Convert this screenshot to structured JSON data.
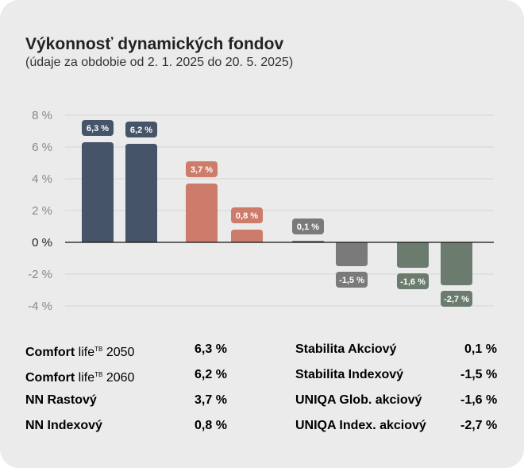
{
  "title": "Výkonnosť dynamických fondov",
  "subtitle": "(údaje za obdobie od 2. 1. 2025 do 20. 5. 2025)",
  "chart_data": {
    "type": "bar",
    "ylim": [
      -4,
      8
    ],
    "yticks": [
      8,
      6,
      4,
      2,
      0,
      -2,
      -4
    ],
    "ytick_labels": [
      "8 %",
      "6 %",
      "4 %",
      "2 %",
      "0 %",
      "-2 %",
      "-4 %"
    ],
    "grid": true,
    "categories": [
      "Comfort life TB 2050",
      "Comfort life TB 2060",
      "NN Rastový",
      "NN Indexový",
      "Stabilita Akciový",
      "Stabilita Indexový",
      "UNIQA Glob. akciový",
      "UNIQA Index. akciový"
    ],
    "values": [
      6.3,
      6.2,
      3.7,
      0.8,
      0.1,
      -1.5,
      -1.6,
      -2.7
    ],
    "data_labels": [
      "6,3 %",
      "6,2 %",
      "3,7 %",
      "0,8 %",
      "0,1 %",
      "-1,5 %",
      "-1,6 %",
      "-2,7 %"
    ],
    "colors": [
      "#46546a",
      "#46546a",
      "#cd7b6a",
      "#cd7b6a",
      "#7a7a7a",
      "#7a7a7a",
      "#6b7b6d",
      "#6b7b6d"
    ]
  },
  "legend": {
    "left": [
      {
        "bold": "Comfort",
        "thin": "life",
        "sup": "TB",
        "rest": "2050",
        "value": "6,3 %"
      },
      {
        "bold": "Comfort",
        "thin": "life",
        "sup": "TB",
        "rest": "2060",
        "value": "6,2 %"
      },
      {
        "bold": "NN Rastový",
        "thin": "",
        "sup": "",
        "rest": "",
        "value": "3,7 %"
      },
      {
        "bold": "NN Indexový",
        "thin": "",
        "sup": "",
        "rest": "",
        "value": "0,8 %"
      }
    ],
    "right": [
      {
        "bold": "Stabilita Akciový",
        "value": "0,1 %"
      },
      {
        "bold": "Stabilita Indexový",
        "value": "-1,5 %"
      },
      {
        "bold": "UNIQA Glob. akciový",
        "value": "-1,6 %"
      },
      {
        "bold": "UNIQA Index. akciový",
        "value": "-2,7 %"
      }
    ]
  }
}
